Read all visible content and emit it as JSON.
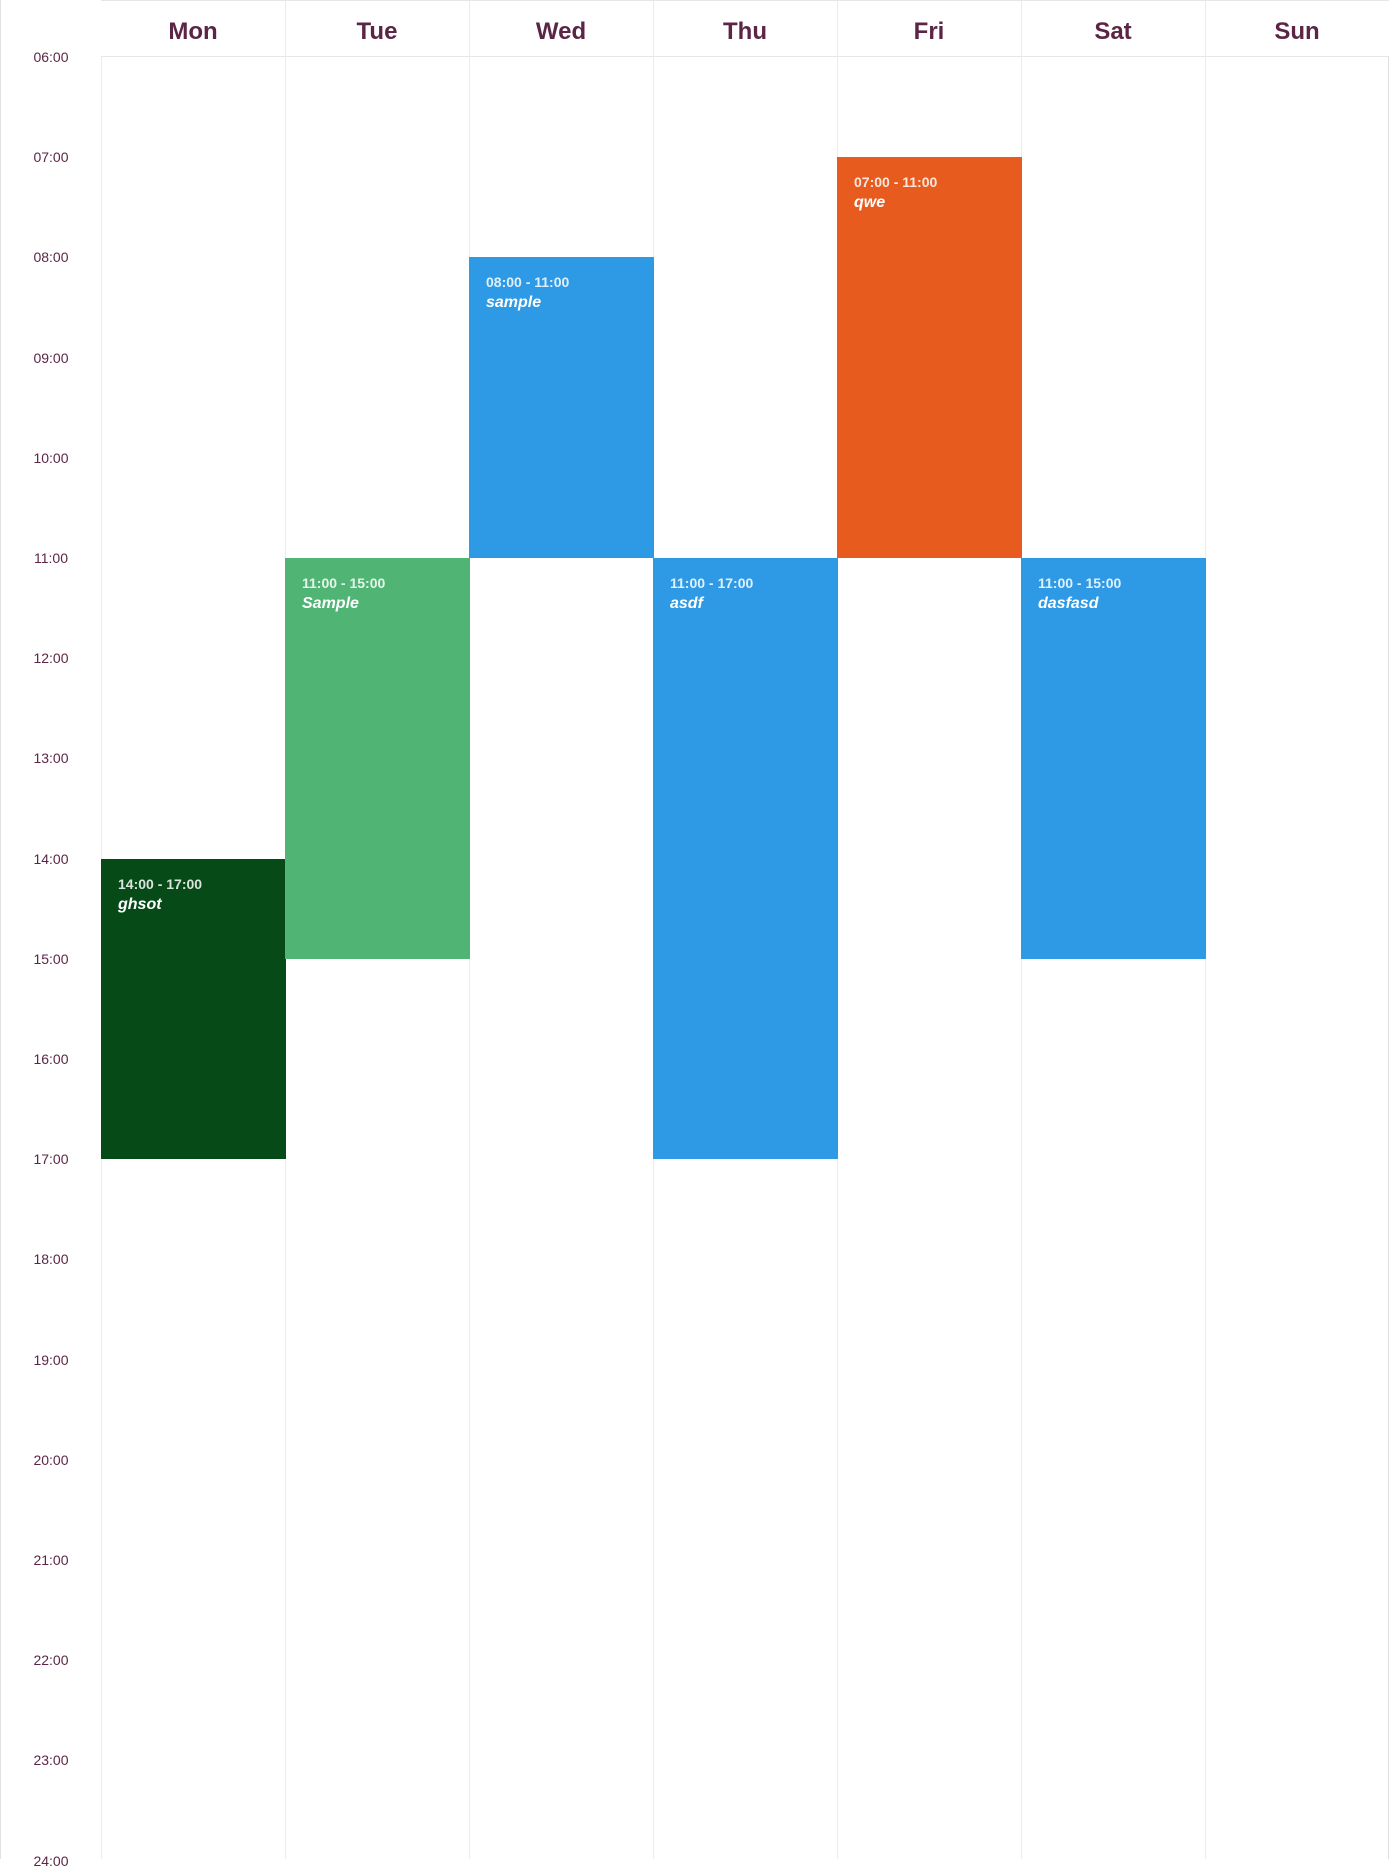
{
  "calendar": {
    "days": [
      "Mon",
      "Tue",
      "Wed",
      "Thu",
      "Fri",
      "Sat",
      "Sun"
    ],
    "time_labels": [
      "06:00",
      "07:00",
      "08:00",
      "09:00",
      "10:00",
      "11:00",
      "12:00",
      "13:00",
      "14:00",
      "15:00",
      "16:00",
      "17:00",
      "18:00",
      "19:00",
      "20:00",
      "21:00",
      "22:00",
      "23:00",
      "24:00"
    ],
    "start_hour": 6,
    "end_hour": 24,
    "colors": {
      "heading": "#5b2646",
      "grid_line": "#ececec"
    },
    "events": [
      {
        "day": "Mon",
        "start": 14,
        "end": 17,
        "time": "14:00 - 17:00",
        "title": "ghsot",
        "color": "#064a17"
      },
      {
        "day": "Tue",
        "start": 11,
        "end": 15,
        "time": "11:00 - 15:00",
        "title": "Sample",
        "color": "#50b574"
      },
      {
        "day": "Wed",
        "start": 8,
        "end": 11,
        "time": "08:00 - 11:00",
        "title": "sample",
        "color": "#2e9ae6"
      },
      {
        "day": "Thu",
        "start": 11,
        "end": 17,
        "time": "11:00 - 17:00",
        "title": "asdf",
        "color": "#2e9ae6"
      },
      {
        "day": "Fri",
        "start": 7,
        "end": 11,
        "time": "07:00 - 11:00",
        "title": "qwe",
        "color": "#e85b1f"
      },
      {
        "day": "Sat",
        "start": 11,
        "end": 15,
        "time": "11:00 - 15:00",
        "title": "dasfasd",
        "color": "#2e9ae6"
      }
    ]
  }
}
